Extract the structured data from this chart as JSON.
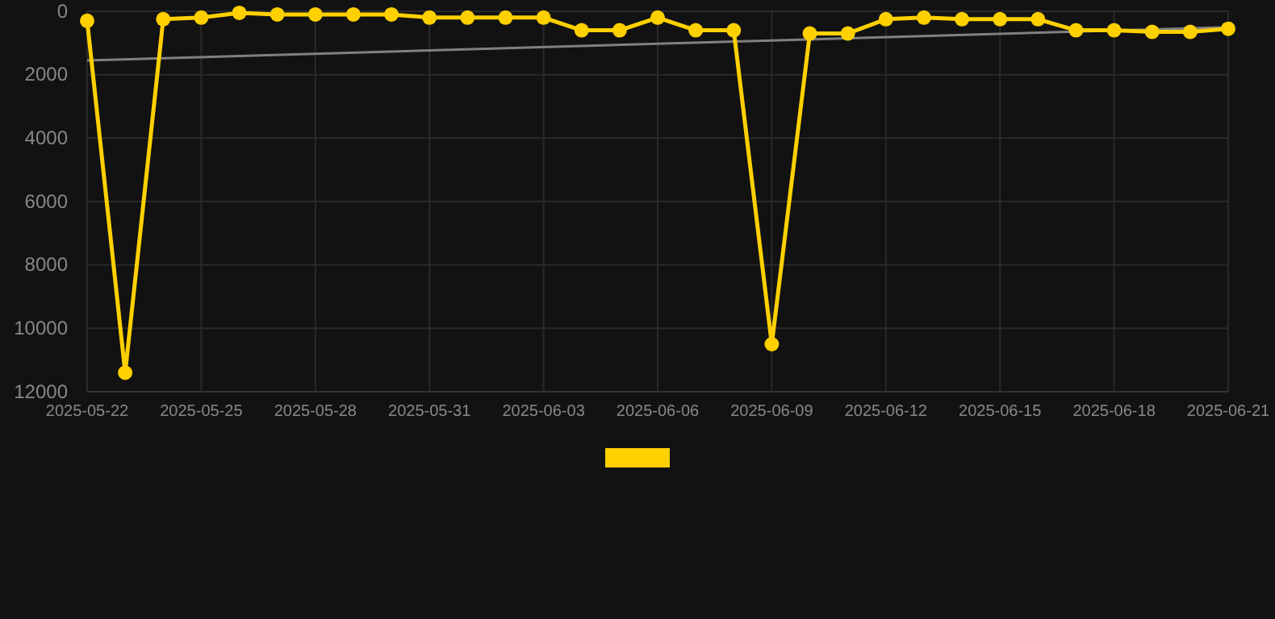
{
  "chart_data": {
    "type": "line",
    "x": [
      "2025-05-22",
      "2025-05-23",
      "2025-05-24",
      "2025-05-25",
      "2025-05-26",
      "2025-05-27",
      "2025-05-28",
      "2025-05-29",
      "2025-05-30",
      "2025-05-31",
      "2025-06-01",
      "2025-06-02",
      "2025-06-03",
      "2025-06-04",
      "2025-06-05",
      "2025-06-06",
      "2025-06-07",
      "2025-06-08",
      "2025-06-09",
      "2025-06-10",
      "2025-06-11",
      "2025-06-12",
      "2025-06-13",
      "2025-06-14",
      "2025-06-15",
      "2025-06-16",
      "2025-06-17",
      "2025-06-18",
      "2025-06-19",
      "2025-06-20",
      "2025-06-21"
    ],
    "series": [
      {
        "color": "#ffd000",
        "marker": "circle",
        "values": [
          300,
          11400,
          250,
          200,
          50,
          100,
          100,
          100,
          100,
          200,
          200,
          200,
          200,
          600,
          600,
          200,
          600,
          600,
          10500,
          700,
          700,
          250,
          200,
          250,
          250,
          250,
          600,
          600,
          650,
          650,
          550
        ]
      },
      {
        "type": "line",
        "color": "#808080",
        "marker": "none",
        "x": [
          "2025-05-22",
          "2025-06-21"
        ],
        "values": [
          1550,
          500
        ]
      }
    ],
    "xlim": [
      "2025-05-22",
      "2025-06-21"
    ],
    "xticks": [
      {
        "value": "2025-05-22",
        "label": "2025-05-22"
      },
      {
        "value": "2025-05-25",
        "label": "2025-05-25"
      },
      {
        "value": "2025-05-28",
        "label": "2025-05-28"
      },
      {
        "value": "2025-05-31",
        "label": "2025-05-31"
      },
      {
        "value": "2025-06-03",
        "label": "2025-06-03"
      },
      {
        "value": "2025-06-06",
        "label": "2025-06-06"
      },
      {
        "value": "2025-06-09",
        "label": "2025-06-09"
      },
      {
        "value": "2025-06-12",
        "label": "2025-06-12"
      },
      {
        "value": "2025-06-15",
        "label": "2025-06-15"
      },
      {
        "value": "2025-06-18",
        "label": "2025-06-18"
      },
      {
        "value": "2025-06-21",
        "label": "2025-06-21"
      }
    ],
    "ylim": [
      12000,
      0
    ],
    "yticks": [
      0,
      2000,
      4000,
      6000,
      8000,
      10000,
      12000
    ],
    "grid": true
  }
}
